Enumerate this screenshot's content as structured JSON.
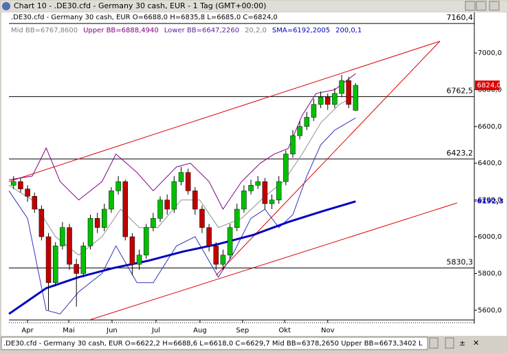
{
  "window": {
    "title": "Chart 10 - .DE30.cfd - Germany 30 cash, EUR - 1 Tag (GMT+00:00)",
    "status": ".DE30.cfd - Germany 30 cash, EUR O=6622,2 H=6688,6 L=6618,0 C=6629,7 Mid BB=6378,2650 Upper BB=6673,3402 L"
  },
  "chart_data": {
    "type": "candlestick",
    "title": ".DE30.cfd - Germany 30 cash, EUR O=6688,0 H=6835,8 L=6685,0 C=6824,0",
    "indicators": [
      {
        "text": "Mid BB=6767,8600",
        "color": "#808080"
      },
      {
        "text": "Upper BB=6888,4940",
        "color": "#800080"
      },
      {
        "text": "Lower BB=6647,2260",
        "color": "#6020a0"
      },
      {
        "text": "20,2,0",
        "color": "#808080"
      },
      {
        "text": "SMA=6192,2005",
        "color": "#0000c0"
      },
      {
        "text": "200,0,1",
        "color": "#0000c0"
      }
    ],
    "xlim": [
      0,
      200
    ],
    "ylim": [
      5547,
      7221
    ],
    "xticks": [
      {
        "value": 8,
        "label": "Apr"
      },
      {
        "value": 25.7,
        "label": "Mai"
      },
      {
        "value": 44.3,
        "label": "Jun"
      },
      {
        "value": 63.2,
        "label": "Jul"
      },
      {
        "value": 82.1,
        "label": "Aug"
      },
      {
        "value": 100.4,
        "label": "Sep"
      },
      {
        "value": 118.5,
        "label": "Okt"
      },
      {
        "value": 137,
        "label": "Nov"
      }
    ],
    "yticks": [
      {
        "value": 7000,
        "label": "7000,0"
      },
      {
        "value": 6800,
        "label": "6800,0"
      },
      {
        "value": 6600,
        "label": "6600,0"
      },
      {
        "value": 6400,
        "label": "6400,0"
      },
      {
        "value": 6200,
        "label": "6200,0"
      },
      {
        "value": 6000,
        "label": "6000,0"
      },
      {
        "value": 5800,
        "label": "5800,0"
      },
      {
        "value": 5600,
        "label": "5600,0"
      }
    ],
    "up_color": "#00c000",
    "down_color": "#c00000",
    "x": [
      2,
      5,
      8,
      11,
      14,
      17,
      20,
      23,
      26,
      29,
      32,
      35,
      38,
      41,
      44,
      47,
      50,
      53,
      56,
      59,
      62,
      65,
      68,
      71,
      74,
      77,
      80,
      83,
      86,
      89,
      92,
      95,
      98,
      101,
      104,
      107,
      110,
      113,
      116,
      119,
      122,
      125,
      128,
      131,
      134,
      137,
      140,
      143,
      146,
      149
    ],
    "open": [
      6280,
      6300,
      6260,
      6220,
      6150,
      6000,
      5750,
      5950,
      6050,
      5850,
      5800,
      5950,
      6100,
      6050,
      6150,
      6250,
      6300,
      6000,
      5850,
      5900,
      6050,
      6100,
      6200,
      6150,
      6300,
      6350,
      6250,
      6150,
      6050,
      5950,
      5850,
      5900,
      6050,
      6150,
      6250,
      6280,
      6300,
      6180,
      6200,
      6300,
      6450,
      6550,
      6600,
      6650,
      6720,
      6760,
      6720,
      6780,
      6850,
      6688
    ],
    "high": [
      6330,
      6320,
      6280,
      6240,
      6170,
      6020,
      5970,
      6080,
      6070,
      5880,
      5970,
      6120,
      6130,
      6180,
      6270,
      6330,
      6310,
      6020,
      5930,
      6070,
      6130,
      6220,
      6230,
      6330,
      6380,
      6370,
      6270,
      6170,
      6070,
      5970,
      5930,
      6070,
      6180,
      6280,
      6310,
      6330,
      6320,
      6230,
      6330,
      6470,
      6580,
      6630,
      6680,
      6750,
      6790,
      6780,
      6810,
      6880,
      6870,
      6835.8
    ],
    "low": [
      6260,
      6240,
      6190,
      6130,
      5980,
      5600,
      5730,
      5930,
      5820,
      5620,
      5780,
      5930,
      6020,
      6030,
      6130,
      6230,
      5980,
      5790,
      5820,
      5880,
      6030,
      6080,
      6120,
      6130,
      6280,
      6230,
      6120,
      6020,
      5920,
      5820,
      5820,
      5880,
      6030,
      6130,
      6230,
      6260,
      6150,
      6150,
      6180,
      6280,
      6430,
      6530,
      6580,
      6630,
      6700,
      6690,
      6700,
      6760,
      6700,
      6685
    ],
    "close": [
      6300,
      6260,
      6220,
      6150,
      6000,
      5750,
      5950,
      6050,
      5850,
      5800,
      5950,
      6100,
      6050,
      6150,
      6250,
      6300,
      6000,
      5850,
      5900,
      6050,
      6100,
      6200,
      6150,
      6300,
      6350,
      6250,
      6150,
      6050,
      5950,
      5850,
      5900,
      6050,
      6150,
      6250,
      6280,
      6300,
      6180,
      6200,
      6300,
      6450,
      6550,
      6600,
      6650,
      6720,
      6760,
      6720,
      6780,
      6850,
      6720,
      6824
    ],
    "series": [
      {
        "name": "SMA",
        "color": "#0000c0",
        "width": 3,
        "x": [
          0,
          8,
          16,
          30,
          45,
          60,
          75,
          90,
          105,
          120,
          135,
          149
        ],
        "values": [
          5580,
          5650,
          5720,
          5780,
          5830,
          5870,
          5920,
          5960,
          6010,
          6080,
          6140,
          6192.3
        ]
      },
      {
        "name": "Upper BB",
        "color": "#800080",
        "width": 1,
        "x": [
          0,
          10,
          16,
          22,
          30,
          40,
          46,
          55,
          62,
          72,
          78,
          86,
          92,
          100,
          108,
          114,
          120,
          126,
          132,
          140,
          149
        ],
        "values": [
          6310,
          6330,
          6483,
          6300,
          6200,
          6300,
          6450,
          6350,
          6250,
          6380,
          6400,
          6300,
          6150,
          6300,
          6400,
          6450,
          6480,
          6660,
          6780,
          6800,
          6888
        ]
      },
      {
        "name": "Lower BB",
        "color": "#3030c0",
        "width": 1,
        "x": [
          0,
          8,
          16,
          22,
          30,
          40,
          46,
          55,
          62,
          72,
          80,
          90,
          96,
          104,
          110,
          116,
          122,
          128,
          134,
          140,
          149
        ],
        "values": [
          6250,
          6100,
          5600,
          5580,
          5700,
          5800,
          5950,
          5750,
          5750,
          5950,
          6000,
          5780,
          5900,
          6100,
          6150,
          6050,
          6120,
          6330,
          6500,
          6580,
          6647
        ]
      },
      {
        "name": "Mid BB",
        "color": "#909090",
        "width": 1,
        "x": [
          0,
          10,
          20,
          30,
          40,
          48,
          56,
          64,
          74,
          82,
          90,
          100,
          110,
          118,
          126,
          134,
          142,
          149
        ],
        "values": [
          6280,
          6200,
          6000,
          5900,
          6000,
          6150,
          6050,
          6050,
          6200,
          6200,
          6050,
          6100,
          6220,
          6300,
          6450,
          6620,
          6720,
          6768
        ]
      }
    ],
    "trendlines": [
      {
        "color": "#e00000",
        "x": [
          0,
          185.2
        ],
        "values": [
          6300,
          7064
        ]
      },
      {
        "color": "#e00000",
        "x": [
          89,
          185.2
        ],
        "values": [
          5790,
          7064
        ]
      },
      {
        "color": "#e00000",
        "x": [
          34.6,
          192.6
        ],
        "values": [
          5547,
          6184
        ]
      }
    ],
    "levels": [
      {
        "value": 7160.4,
        "label": "7160,4"
      },
      {
        "value": 6762.5,
        "label": "6762,5"
      },
      {
        "value": 6423.2,
        "label": "6423,2"
      },
      {
        "value": 5830.3,
        "label": "5830,3"
      }
    ],
    "last_price": {
      "value": 6824,
      "label": "6824,0",
      "color": "#e00000"
    },
    "sma_marker": {
      "value": 6192.3,
      "label": "6192,3",
      "color": "#0000c0"
    }
  }
}
